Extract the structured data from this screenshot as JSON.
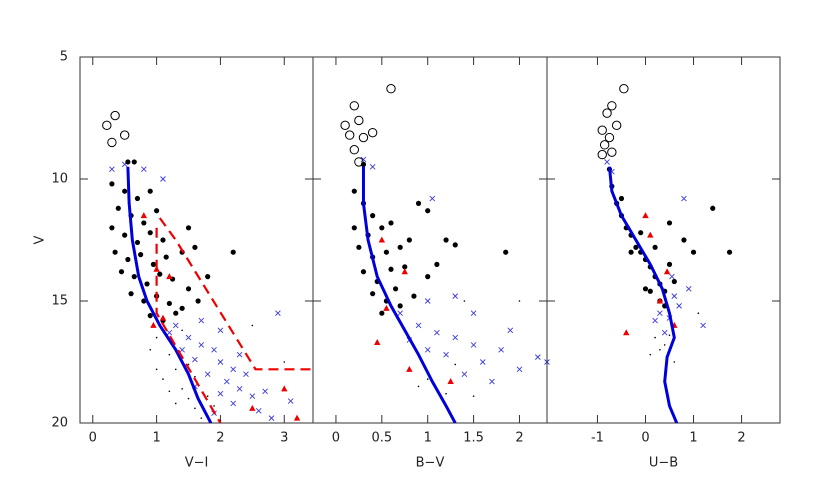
{
  "chart_data": [
    {
      "type": "scatter",
      "xlabel": "V−I",
      "ylabel": "V",
      "xlim": [
        -0.2,
        3.45
      ],
      "ylim": [
        20,
        5
      ],
      "xticks": [
        0,
        1,
        2,
        3
      ],
      "yticks": [
        5,
        10,
        15,
        20
      ],
      "ytick_labels": true,
      "series": [
        {
          "marker": "point",
          "color": "#000000",
          "x": [
            1.0,
            1.2,
            1.3,
            1.1,
            1.4,
            1.5,
            1.6,
            1.7,
            1.3,
            1.8,
            1.2,
            1.5,
            0.9,
            1.4,
            2.0,
            1.9,
            2.5,
            3.0,
            1.6,
            1.0
          ],
          "y": [
            16.5,
            17.2,
            17.8,
            18.2,
            18.6,
            19.0,
            19.4,
            19.8,
            19.2,
            18.9,
            18.7,
            17.6,
            17.0,
            16.2,
            19.9,
            19.3,
            16.0,
            17.5,
            18.1,
            17.8
          ]
        },
        {
          "marker": "cross",
          "color": "#3a3adf",
          "x": [
            0.3,
            0.5,
            1.1,
            0.8,
            1.3,
            1.5,
            1.7,
            1.9,
            2.0,
            2.2,
            1.6,
            1.8,
            2.1,
            2.3,
            2.5,
            1.4,
            2.0,
            2.2,
            2.6,
            1.9,
            2.4,
            2.7,
            3.1,
            2.9,
            1.2,
            1.7,
            2.3,
            1.6,
            2.8,
            2.0
          ],
          "y": [
            9.6,
            9.4,
            10.0,
            9.6,
            16.0,
            16.5,
            16.8,
            17.0,
            17.5,
            17.8,
            17.4,
            18.0,
            18.3,
            18.6,
            18.9,
            17.0,
            18.8,
            19.2,
            19.5,
            19.6,
            18.0,
            18.7,
            19.1,
            15.5,
            16.3,
            15.8,
            17.2,
            18.5,
            19.8,
            16.2
          ]
        },
        {
          "marker": "open-circle",
          "color": "#000000",
          "x": [
            0.22,
            0.35,
            0.3,
            0.5
          ],
          "y": [
            7.8,
            7.4,
            8.5,
            8.2
          ]
        },
        {
          "marker": "dot",
          "color": "#000000",
          "x": [
            0.55,
            0.65,
            0.3,
            0.5,
            0.7,
            0.9,
            0.4,
            0.6,
            0.8,
            1.0,
            0.3,
            0.5,
            0.7,
            0.9,
            1.1,
            0.35,
            0.55,
            0.75,
            0.95,
            1.15,
            1.4,
            0.45,
            0.65,
            0.85,
            1.05,
            1.25,
            1.5,
            0.6,
            0.8,
            1.0,
            1.2,
            1.4,
            1.65,
            0.9,
            1.1,
            1.3,
            1.8,
            2.2,
            1.5,
            1.6
          ],
          "y": [
            9.3,
            9.3,
            10.2,
            10.5,
            10.8,
            10.5,
            11.2,
            11.5,
            11.8,
            11.3,
            12.0,
            12.3,
            12.6,
            12.2,
            12.5,
            13.0,
            13.3,
            13.1,
            13.5,
            13.2,
            13.0,
            13.8,
            14.0,
            14.3,
            13.9,
            14.1,
            14.5,
            14.7,
            15.0,
            14.8,
            15.1,
            15.3,
            15.0,
            15.6,
            15.8,
            15.5,
            14.0,
            13.0,
            12.0,
            12.8
          ]
        },
        {
          "marker": "triangle",
          "color": "#ee0000",
          "x": [
            0.8,
            1.0,
            1.2,
            1.1,
            3.0,
            3.2,
            2.5,
            0.95
          ],
          "y": [
            11.5,
            13.7,
            14.0,
            15.7,
            18.6,
            19.8,
            19.4,
            16.0
          ]
        },
        {
          "marker": "line",
          "color": "#0000dd",
          "x": [
            0.55,
            0.57,
            0.62,
            0.72,
            0.85,
            1.05,
            1.3,
            1.5,
            1.65,
            1.85
          ],
          "y": [
            9.5,
            11,
            12.5,
            14,
            15,
            16,
            17,
            18,
            19,
            20
          ]
        },
        {
          "marker": "dashed-line",
          "color": "#ee0000",
          "x": [
            1.0,
            1.0,
            2.0
          ],
          "y": [
            12.0,
            15.5,
            20
          ]
        },
        {
          "marker": "dashed-line",
          "color": "#ee0000",
          "x": [
            1.05,
            1.3,
            2.55,
            3.45
          ],
          "y": [
            11.6,
            12.5,
            17.8,
            17.8
          ]
        }
      ]
    },
    {
      "type": "scatter",
      "xlabel": "B−V",
      "xlim": [
        -0.25,
        2.3
      ],
      "ylim": [
        20,
        5
      ],
      "xticks": [
        0,
        0.5,
        1,
        1.5,
        2
      ],
      "yticks": [
        5,
        10,
        15,
        20
      ],
      "ytick_labels": false,
      "series": [
        {
          "marker": "point",
          "color": "#000000",
          "x": [
            0.9,
            1.0,
            1.2,
            1.5,
            2.0,
            1.3,
            1.4
          ],
          "y": [
            18.5,
            18.2,
            18.8,
            18.9,
            15.0,
            17.6,
            15.0
          ]
        },
        {
          "marker": "cross",
          "color": "#3a3adf",
          "x": [
            0.3,
            0.4,
            1.05,
            0.7,
            0.9,
            1.1,
            1.3,
            1.5,
            1.2,
            1.6,
            1.8,
            2.0,
            1.4,
            1.7,
            1.0,
            0.8,
            1.9,
            2.2,
            2.3,
            1.5,
            1.3,
            1.0
          ],
          "y": [
            9.2,
            9.5,
            10.8,
            15.5,
            16.0,
            16.3,
            16.5,
            16.8,
            17.2,
            17.5,
            17.0,
            17.8,
            18.0,
            18.3,
            17.0,
            16.6,
            16.2,
            17.3,
            17.5,
            15.5,
            14.8,
            15.0
          ]
        },
        {
          "marker": "open-circle",
          "color": "#000000",
          "x": [
            0.1,
            0.2,
            0.25,
            0.15,
            0.2,
            0.3,
            0.4,
            0.6,
            0.25
          ],
          "y": [
            7.8,
            7.0,
            7.6,
            8.2,
            8.8,
            8.3,
            8.1,
            6.3,
            9.3
          ]
        },
        {
          "marker": "dot",
          "color": "#000000",
          "x": [
            0.3,
            0.2,
            0.3,
            0.4,
            0.2,
            0.35,
            0.5,
            0.25,
            0.4,
            0.55,
            0.3,
            0.45,
            0.6,
            0.75,
            0.4,
            0.55,
            0.7,
            0.5,
            0.65,
            0.85,
            0.9,
            1.0,
            1.2,
            1.3,
            1.85,
            1.1,
            0.8,
            1.0,
            0.6,
            0.7
          ],
          "y": [
            9.4,
            10.5,
            11.0,
            11.5,
            12.0,
            12.3,
            12.0,
            12.8,
            13.2,
            13.0,
            13.8,
            14.2,
            13.7,
            13.6,
            14.7,
            15.0,
            15.2,
            15.5,
            14.5,
            14.8,
            11.0,
            11.3,
            12.5,
            12.7,
            13.0,
            13.5,
            12.5,
            14.0,
            11.8,
            12.8
          ]
        },
        {
          "marker": "triangle",
          "color": "#ee0000",
          "x": [
            0.5,
            0.75,
            0.55,
            0.45,
            0.8,
            1.25
          ],
          "y": [
            12.5,
            13.8,
            15.3,
            16.7,
            17.8,
            18.3
          ]
        },
        {
          "marker": "line",
          "color": "#0000dd",
          "x": [
            0.3,
            0.3,
            0.35,
            0.45,
            0.6,
            0.75,
            0.9,
            1.05,
            1.2,
            1.3
          ],
          "y": [
            9.5,
            11,
            12.5,
            14,
            15.2,
            16.2,
            17.2,
            18.3,
            19.3,
            20
          ]
        }
      ]
    },
    {
      "type": "scatter",
      "xlabel": "U−B",
      "xlim": [
        -2.05,
        2.8
      ],
      "ylim": [
        20,
        5
      ],
      "xticks": [
        -1,
        0,
        1,
        2
      ],
      "yticks": [
        5,
        10,
        15,
        20
      ],
      "ytick_labels": false,
      "series": [
        {
          "marker": "point",
          "color": "#000000",
          "x": [
            0.2,
            0.3,
            0.4,
            0.1,
            0.5,
            1.1,
            0.6
          ],
          "y": [
            16.5,
            17.0,
            16.8,
            17.2,
            16.4,
            15.5,
            17.5
          ]
        },
        {
          "marker": "cross",
          "color": "#3a3adf",
          "x": [
            -0.8,
            -0.7,
            0.8,
            0.3,
            0.5,
            0.7,
            1.2,
            0.6,
            0.9,
            0.2,
            0.4,
            0.55
          ],
          "y": [
            9.3,
            9.7,
            10.8,
            15.5,
            15.7,
            15.2,
            16.0,
            14.8,
            14.5,
            15.8,
            16.3,
            14.0
          ]
        },
        {
          "marker": "open-circle",
          "color": "#000000",
          "x": [
            -0.9,
            -0.8,
            -0.7,
            -0.85,
            -0.75,
            -0.9,
            -0.6,
            -0.7,
            -0.45
          ],
          "y": [
            8.0,
            7.3,
            7.0,
            8.6,
            8.3,
            9.0,
            7.8,
            8.9,
            6.3
          ]
        },
        {
          "marker": "dot",
          "color": "#000000",
          "x": [
            -0.75,
            -0.7,
            -0.6,
            -0.5,
            -0.4,
            -0.3,
            -0.2,
            -0.1,
            0.0,
            0.1,
            0.2,
            0.3,
            0.4,
            -0.3,
            -0.1,
            0.2,
            0.5,
            0.3,
            0.4,
            0.1,
            0.8,
            1.0,
            1.4,
            1.75,
            0.6,
            0.5,
            -0.5,
            0.0
          ],
          "y": [
            9.6,
            10.3,
            11.0,
            11.5,
            12.0,
            12.3,
            12.8,
            13.0,
            13.3,
            13.6,
            14.0,
            14.3,
            14.6,
            13.0,
            12.2,
            12.8,
            13.5,
            15.0,
            15.2,
            14.6,
            12.5,
            13.0,
            11.2,
            13.0,
            14.2,
            11.8,
            10.8,
            14.5
          ]
        },
        {
          "marker": "triangle",
          "color": "#ee0000",
          "x": [
            0.0,
            0.1,
            0.45,
            0.3,
            0.6,
            -0.4
          ],
          "y": [
            11.5,
            12.3,
            13.8,
            15.0,
            16.0,
            16.3
          ]
        },
        {
          "marker": "line",
          "color": "#0000dd",
          "x": [
            -0.75,
            -0.7,
            -0.5,
            -0.2,
            0.1,
            0.35,
            0.5,
            0.6,
            0.45,
            0.4,
            0.5,
            0.65
          ],
          "y": [
            9.5,
            10.5,
            11.5,
            12.5,
            13.5,
            14.5,
            15.5,
            16.5,
            17.3,
            18.3,
            19.3,
            20
          ]
        }
      ]
    }
  ]
}
